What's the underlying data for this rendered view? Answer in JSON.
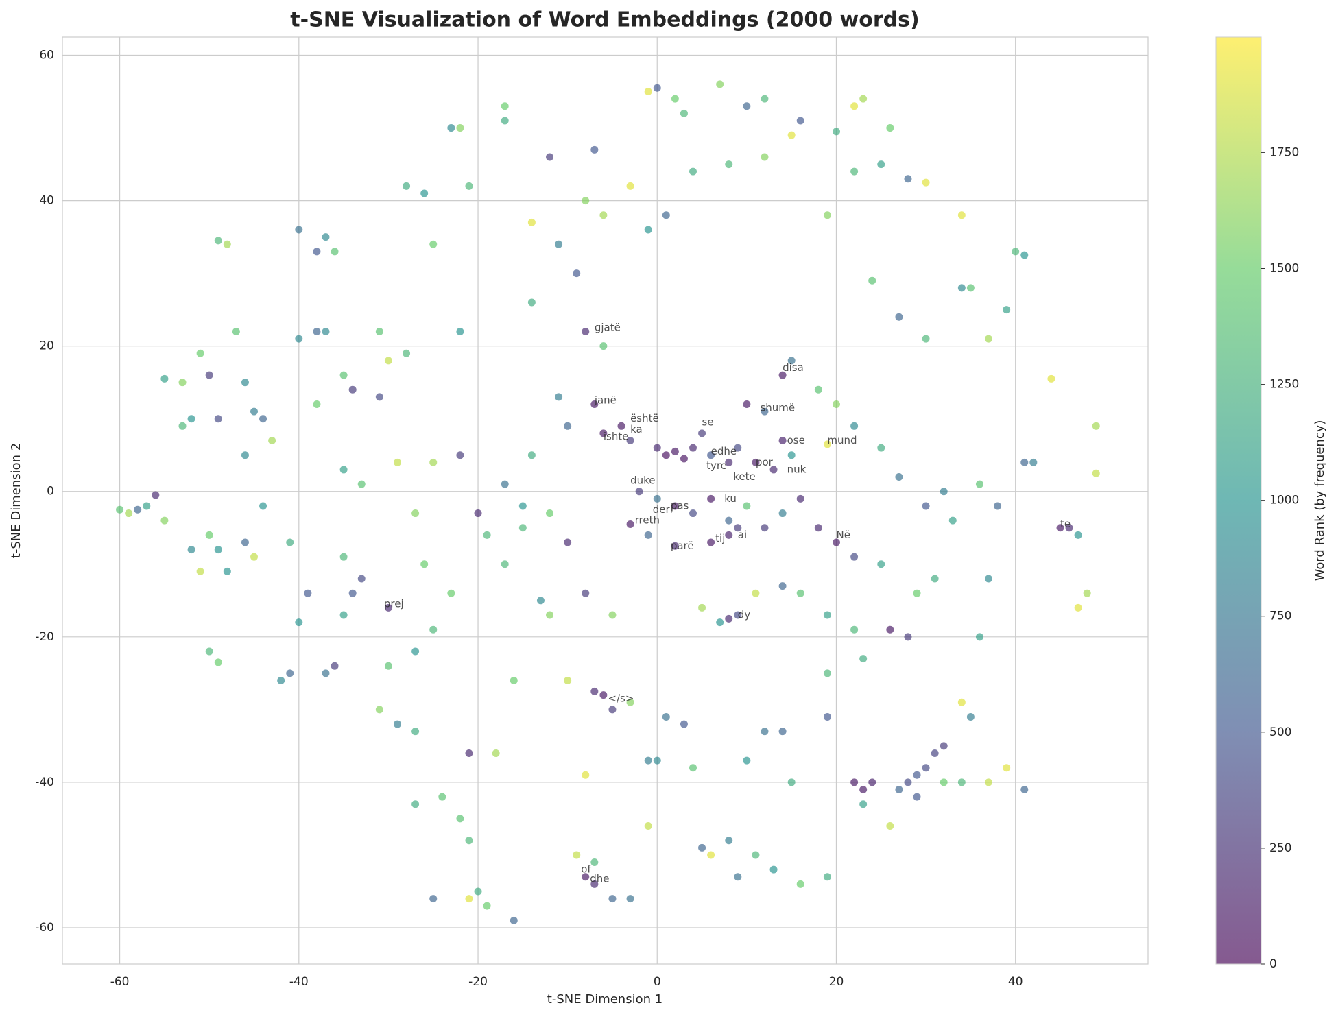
{
  "chart_data": {
    "type": "scatter",
    "title": "t-SNE Visualization of Word Embeddings (2000 words)",
    "x_label": "t-SNE Dimension 1",
    "y_label": "t-SNE Dimension 2",
    "colorbar_label": "Word Rank (by frequency)",
    "colormap": "viridis",
    "clim": [
      0,
      1999
    ],
    "cticks": [
      0,
      250,
      500,
      750,
      1000,
      1250,
      1500,
      1750
    ],
    "xlim": [
      -66.4,
      54.8
    ],
    "ylim": [
      -65,
      62.5
    ],
    "xticks": [
      -60,
      -40,
      -20,
      0,
      20,
      40
    ],
    "yticks": [
      -60,
      -40,
      -20,
      0,
      20,
      40,
      60
    ],
    "grid": true,
    "x": [
      -60,
      -59,
      -58,
      -56,
      -57,
      -55,
      -53,
      -52,
      -50,
      -49,
      -50,
      -49,
      -52,
      -51,
      -50,
      -49,
      -49,
      -48,
      -47,
      -46,
      -45,
      -44,
      -43,
      -46,
      -45,
      -40,
      -38,
      -37,
      -36,
      -38,
      -37,
      -35,
      -34,
      -35,
      -33,
      -35,
      -34,
      -35,
      -36,
      -37,
      -41,
      -42,
      -40,
      -31,
      -29,
      -27,
      -28,
      -26,
      -25,
      -23,
      -22,
      -21,
      -22,
      -22,
      -20,
      -19,
      -23,
      -21,
      -18,
      -16,
      -22,
      -21,
      -20,
      -21,
      -19,
      -16,
      -17,
      -17,
      -14,
      -14,
      -12,
      -11,
      -9,
      -7,
      -8,
      -6,
      -3,
      -1,
      0,
      2,
      3,
      7,
      10,
      12,
      15,
      16,
      20,
      22,
      23,
      26,
      28,
      30,
      25,
      22,
      19,
      12,
      8,
      4,
      1,
      -1,
      34,
      34,
      35,
      40,
      41,
      39,
      37,
      30,
      27,
      24,
      -8,
      -6,
      -11,
      -7,
      -4,
      -6,
      -3,
      0,
      1,
      2,
      3,
      4,
      5,
      6,
      8,
      9,
      11,
      13,
      14,
      15,
      10,
      12,
      14,
      15,
      18,
      20,
      22,
      19,
      25,
      27,
      -2,
      0,
      2,
      4,
      6,
      8,
      10,
      12,
      14,
      16,
      -3,
      -1,
      2,
      6,
      8,
      9,
      18,
      20,
      22,
      25,
      -10,
      -12,
      -15,
      -17,
      -14,
      -10,
      -17,
      -13,
      -8,
      -5,
      5,
      7,
      8,
      9,
      11,
      14,
      16,
      19,
      22,
      26,
      28,
      29,
      31,
      33,
      30,
      32,
      36,
      38,
      41,
      42,
      45,
      46,
      47,
      48,
      47,
      49,
      49,
      44,
      37,
      36,
      34,
      35,
      37,
      39,
      41,
      34,
      32,
      29,
      28,
      30,
      31,
      32,
      29,
      27,
      22,
      23,
      24,
      23,
      26,
      23,
      19,
      19,
      14,
      12,
      10,
      15,
      16,
      19,
      13,
      11,
      9,
      8,
      6,
      5,
      4,
      3,
      1,
      -1,
      0,
      -1,
      -3,
      -5,
      -7,
      -8,
      -9,
      -7,
      -6,
      -7,
      -5,
      -3,
      -8,
      -10,
      -12,
      -15,
      -25,
      -24,
      -27,
      -30,
      -30,
      -33,
      -27,
      -25,
      -28,
      -30,
      -31,
      -29,
      -26,
      -25,
      -27,
      -31,
      -38,
      -40,
      -39,
      -41,
      -44,
      -46,
      -51,
      -53,
      -55,
      -48
    ],
    "values": [
      -2.5,
      -3,
      -2.5,
      -0.5,
      -2,
      15.5,
      15,
      10,
      16,
      10,
      -6,
      -8,
      -8,
      -11,
      -22,
      -23.5,
      34.5,
      34,
      22,
      15,
      11,
      10,
      7,
      -7,
      -9,
      36,
      33,
      35,
      33,
      22,
      22,
      16,
      14,
      3,
      1,
      -9,
      -14,
      -17,
      -24,
      -25,
      -25,
      -26,
      -18,
      -30,
      -32,
      -33,
      42,
      41,
      34,
      50,
      50,
      42,
      22,
      5,
      -3,
      -6,
      -14,
      -36,
      -36,
      -26,
      -45,
      -48,
      -55,
      -56,
      -57,
      -59,
      53,
      51,
      37,
      26,
      46,
      34,
      30,
      47,
      40,
      38,
      42,
      55,
      55.5,
      54,
      52,
      56,
      53,
      54,
      49,
      51,
      49.5,
      53,
      54,
      50,
      43,
      42.5,
      45,
      44,
      38,
      46,
      45,
      44,
      38,
      36,
      38,
      28,
      28,
      33,
      32.5,
      25,
      21,
      21,
      24,
      29,
      22,
      20,
      13,
      12,
      9,
      8,
      7,
      6,
      5,
      5.5,
      4.5,
      6,
      8,
      5,
      4,
      6,
      4,
      3,
      7,
      5,
      12,
      11,
      16,
      18,
      14,
      12,
      9,
      6.5,
      6,
      2,
      0,
      -1,
      -2,
      -3,
      -1,
      -4,
      -2,
      -5,
      -3,
      -1,
      -4.5,
      -6,
      -7.5,
      -7,
      -6,
      -5,
      -5,
      -7,
      -9,
      -10,
      -7,
      -3,
      -2,
      1,
      5,
      9,
      -10,
      -15,
      -14,
      -17,
      -16,
      -18,
      -17.5,
      -17,
      -14,
      -13,
      -14,
      -17,
      -19,
      -19,
      -20,
      -14,
      -12,
      -4,
      -2,
      0,
      1,
      -2,
      4,
      4,
      -5,
      -5,
      -6,
      -14,
      -16,
      9,
      2.5,
      15.5,
      -12,
      -20,
      -29,
      -31,
      -40,
      -38,
      -41,
      -40,
      -40,
      -39,
      -40,
      -38,
      -36,
      -35,
      -42,
      -41,
      -40,
      -41,
      -40,
      -43,
      -46,
      -23,
      -25,
      -31,
      -33,
      -33,
      -37,
      -40,
      -54,
      -53,
      -52,
      -50,
      -53,
      -48,
      -50,
      -49,
      -38,
      -32,
      -31,
      -37,
      -37,
      -46,
      -56,
      -56,
      -54,
      -53,
      -50,
      -51,
      -28,
      -27.5,
      -30,
      -29,
      -39,
      -26,
      -17,
      -5,
      -56,
      -42,
      -43,
      -24,
      -16,
      -12,
      -22,
      -19,
      19,
      18,
      13,
      4,
      -10,
      4,
      -3,
      22,
      12,
      21,
      -14,
      -7,
      -2,
      5,
      19,
      9,
      -4,
      -11
    ],
    "color_values": [
      1400,
      1700,
      600,
      200,
      1100,
      1100,
      1600,
      1000,
      300,
      400,
      1500,
      1000,
      900,
      1800,
      1300,
      1500,
      1300,
      1700,
      1400,
      900,
      800,
      600,
      1700,
      600,
      1800,
      700,
      500,
      900,
      1400,
      600,
      900,
      1400,
      300,
      1100,
      1400,
      1300,
      500,
      1100,
      300,
      700,
      600,
      900,
      1000,
      1600,
      800,
      1200,
      1200,
      1000,
      1500,
      900,
      1600,
      1300,
      1000,
      300,
      200,
      1300,
      1500,
      200,
      1700,
      1500,
      1400,
      1300,
      1200,
      1900,
      1500,
      600,
      1500,
      1200,
      1900,
      1200,
      300,
      800,
      500,
      500,
      1600,
      1700,
      1900,
      1900,
      500,
      1500,
      1300,
      1600,
      600,
      1300,
      1900,
      500,
      1200,
      1900,
      1700,
      1500,
      600,
      1900,
      1100,
      1300,
      1600,
      1600,
      1300,
      1200,
      600,
      1000,
      1900,
      900,
      1400,
      1300,
      1000,
      1100,
      1700,
      1300,
      600,
      1400,
      200,
      1400,
      800,
      100,
      100,
      100,
      300,
      200,
      50,
      100,
      80,
      200,
      300,
      500,
      200,
      400,
      100,
      200,
      150,
      1000,
      100,
      600,
      100,
      700,
      1400,
      1600,
      900,
      1900,
      1200,
      700,
      300,
      700,
      100,
      400,
      100,
      600,
      1400,
      300,
      800,
      200,
      100,
      600,
      200,
      100,
      150,
      300,
      200,
      100,
      400,
      1100,
      200,
      1500,
      1000,
      700,
      1200,
      600,
      1300,
      900,
      300,
      1600,
      1700,
      1000,
      200,
      400,
      1800,
      600,
      1400,
      1100,
      1300,
      100,
      300,
      1500,
      1200,
      1100,
      500,
      800,
      1400,
      600,
      600,
      800,
      100,
      200,
      1000,
      1700,
      1900,
      1700,
      1800,
      1900,
      900,
      1100,
      1900,
      800,
      1800,
      1900,
      600,
      1300,
      1500,
      500,
      400,
      400,
      350,
      300,
      500,
      600,
      100,
      100,
      150,
      1100,
      1800,
      1200,
      1300,
      500,
      600,
      700,
      1000,
      1200,
      1500,
      1200,
      1000,
      1300,
      700,
      800,
      1900,
      600,
      1400,
      500,
      700,
      800,
      900,
      1800,
      700,
      600,
      200,
      100,
      1800,
      1300,
      100,
      200,
      300,
      1600,
      1900,
      1800,
      1600,
      1300,
      600,
      1400,
      1200,
      1400,
      200,
      400,
      1000,
      1300,
      1300,
      1800,
      400,
      1800,
      1500,
      1700,
      1600,
      1400,
      1500,
      900,
      500,
      1200,
      1000,
      900,
      1500,
      1300,
      1600,
      1000
    ],
    "annotations": [
      {
        "text": "gjatë",
        "x": -7,
        "y": 22.5
      },
      {
        "text": "janë",
        "x": -7,
        "y": 12.5
      },
      {
        "text": "është",
        "x": -3,
        "y": 10
      },
      {
        "text": "ishte",
        "x": -6,
        "y": 7.5
      },
      {
        "text": "ka",
        "x": -3,
        "y": 8.5
      },
      {
        "text": "se",
        "x": 5,
        "y": 9.5
      },
      {
        "text": "edhe",
        "x": 6,
        "y": 5.5
      },
      {
        "text": "tyre",
        "x": 5.5,
        "y": 3.5
      },
      {
        "text": "por",
        "x": 11,
        "y": 4
      },
      {
        "text": "nuk",
        "x": 14.5,
        "y": 3
      },
      {
        "text": "ose",
        "x": 14.5,
        "y": 7
      },
      {
        "text": "mund",
        "x": 19,
        "y": 7
      },
      {
        "text": "disa",
        "x": 14,
        "y": 17
      },
      {
        "text": "shumë",
        "x": 11.5,
        "y": 11.5
      },
      {
        "text": "kete",
        "x": 8.5,
        "y": 2
      },
      {
        "text": "duke",
        "x": -3,
        "y": 1.5
      },
      {
        "text": "ku",
        "x": 7.5,
        "y": -1
      },
      {
        "text": "pas",
        "x": 1.5,
        "y": -2
      },
      {
        "text": "deri",
        "x": -0.5,
        "y": -2.5
      },
      {
        "text": "rreth",
        "x": -2.5,
        "y": -4
      },
      {
        "text": "parë",
        "x": 1.5,
        "y": -7.5
      },
      {
        "text": "tij",
        "x": 6.5,
        "y": -6.5
      },
      {
        "text": "ai",
        "x": 9,
        "y": -6
      },
      {
        "text": "Në",
        "x": 20,
        "y": -6
      },
      {
        "text": "te",
        "x": 45,
        "y": -4.5
      },
      {
        "text": "prej",
        "x": -30.5,
        "y": -15.5
      },
      {
        "text": "dy",
        "x": 9,
        "y": -17
      },
      {
        "text": "</s>",
        "x": -5.5,
        "y": -28.5
      },
      {
        "text": "of",
        "x": -8.5,
        "y": -52
      },
      {
        "text": "dhe",
        "x": -7.5,
        "y": -53.3
      }
    ]
  }
}
